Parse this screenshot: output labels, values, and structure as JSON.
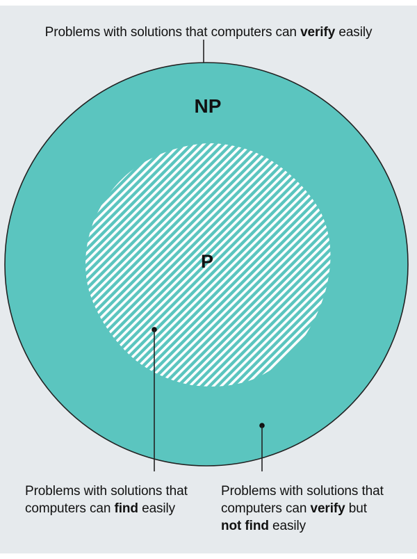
{
  "captions": {
    "top": {
      "before": "Problems with solutions that computers can ",
      "emphasis": "verify",
      "after": " easily"
    },
    "left": {
      "line1": "Problems with solutions that",
      "line2_before": "computers can ",
      "line2_emphasis": "find",
      "line2_after": " easily"
    },
    "right": {
      "line1": "Problems with solutions that",
      "line2_before": "computers can ",
      "line2_emphasis": "verify",
      "line2_after": " but",
      "line3_emphasis": "not find",
      "line3_after": " easily"
    }
  },
  "regions": {
    "outer_label": "NP",
    "inner_label": "P"
  },
  "colors": {
    "background": "#e6eaed",
    "np_fill": "#5bc5bf",
    "p_stripe_light": "#ffffff",
    "outline": "#222222",
    "text": "#111111"
  }
}
